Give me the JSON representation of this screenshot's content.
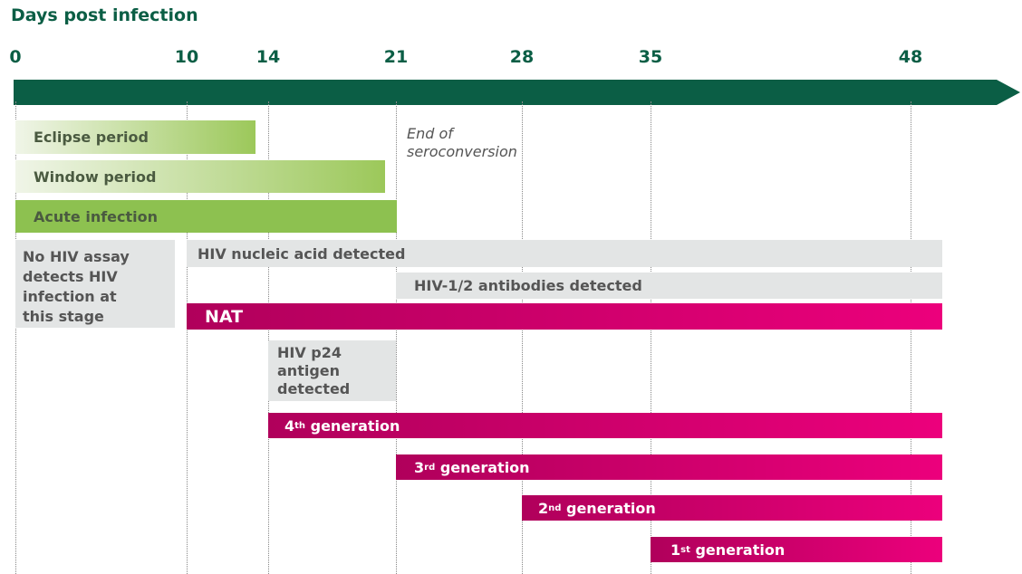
{
  "header": {
    "title": "Days post infection"
  },
  "ticks": [
    "0",
    "10",
    "14",
    "21",
    "28",
    "35",
    "48"
  ],
  "annotation": {
    "line1": "End of",
    "line2": "seroconversion"
  },
  "periods": [
    "Eclipse period",
    "Window period",
    "Acute infection"
  ],
  "no_assay": {
    "lines": [
      "No HIV assay",
      "detects HIV",
      "infection at",
      "this stage"
    ]
  },
  "detected": {
    "nucleic_acid": "HIV nucleic acid detected",
    "antibodies": "HIV-1/2 antibodies detected",
    "p24": [
      "HIV p24",
      "antigen",
      "detected"
    ]
  },
  "tests": {
    "nat": "NAT",
    "generations": [
      {
        "number": "4",
        "suffix": "th",
        "text": "generation"
      },
      {
        "number": "3",
        "suffix": "rd",
        "text": "generation"
      },
      {
        "number": "2",
        "suffix": "nd",
        "text": "generation"
      },
      {
        "number": "1",
        "suffix": "st",
        "text": "generation"
      }
    ]
  }
}
